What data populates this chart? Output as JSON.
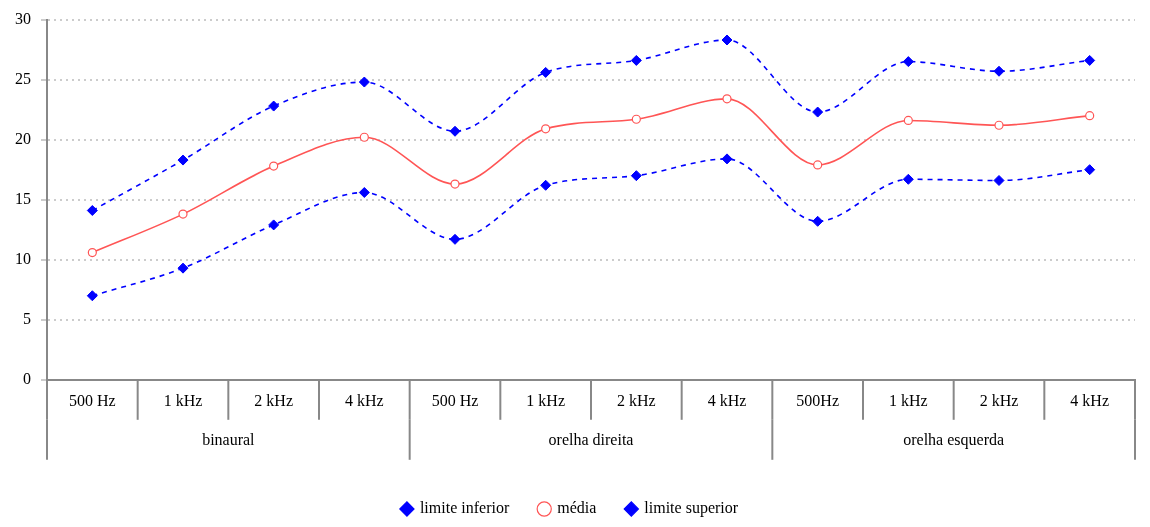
{
  "chart_data": {
    "type": "line",
    "categories": [
      "500 Hz",
      "1 kHz",
      "2 kHz",
      "4 kHz",
      "500 Hz",
      "1 kHz",
      "2 kHz",
      "4 kHz",
      "500Hz",
      "1 kHz",
      "2 kHz",
      "4 kHz"
    ],
    "annotations": [
      "binaural",
      "orelha direita",
      "orelha esquerda"
    ],
    "series": [
      {
        "name": "limite inferior",
        "color": "#0000ff",
        "marker": "diamond",
        "line_style": "dashed",
        "values": [
          7.0,
          9.3,
          12.9,
          15.6,
          11.7,
          16.2,
          17.0,
          18.4,
          13.2,
          16.7,
          16.6,
          17.5
        ]
      },
      {
        "name": "média",
        "color": "#ff5555",
        "marker": "circle",
        "line_style": "solid",
        "values": [
          10.6,
          13.8,
          17.8,
          20.2,
          16.3,
          20.9,
          21.7,
          23.4,
          17.9,
          21.6,
          21.2,
          22.0
        ]
      },
      {
        "name": "limite superior",
        "color": "#0000ff",
        "marker": "diamond",
        "line_style": "dashed",
        "values": [
          14.1,
          18.3,
          22.8,
          24.8,
          20.7,
          25.6,
          26.6,
          28.3,
          22.3,
          26.5,
          25.7,
          26.6
        ]
      }
    ],
    "ylim": [
      0,
      30
    ],
    "yticks": [
      0,
      5,
      10,
      15,
      20,
      25,
      30
    ],
    "grid": "y",
    "legend": "bottom"
  }
}
